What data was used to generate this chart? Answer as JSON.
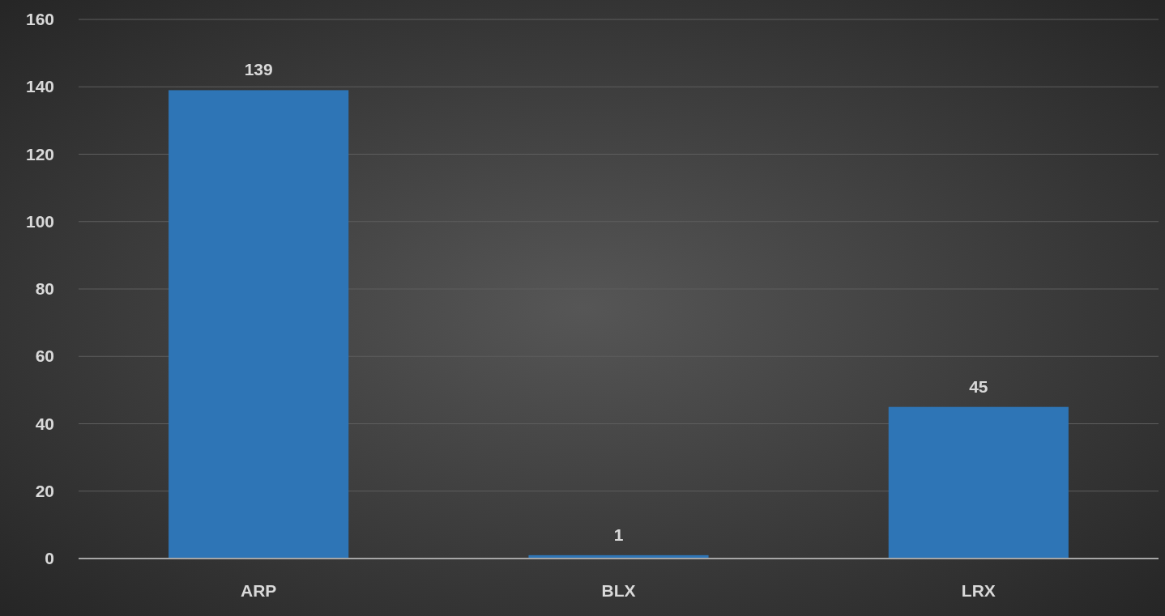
{
  "chart_data": {
    "type": "bar",
    "categories": [
      "ARP",
      "BLX",
      "LRX"
    ],
    "values": [
      139,
      1,
      45
    ],
    "color": "#2e75b6",
    "ylim": [
      0,
      160
    ],
    "yticks": [
      0,
      20,
      40,
      60,
      80,
      100,
      120,
      140,
      160
    ],
    "grid": "y",
    "data_labels": true
  }
}
